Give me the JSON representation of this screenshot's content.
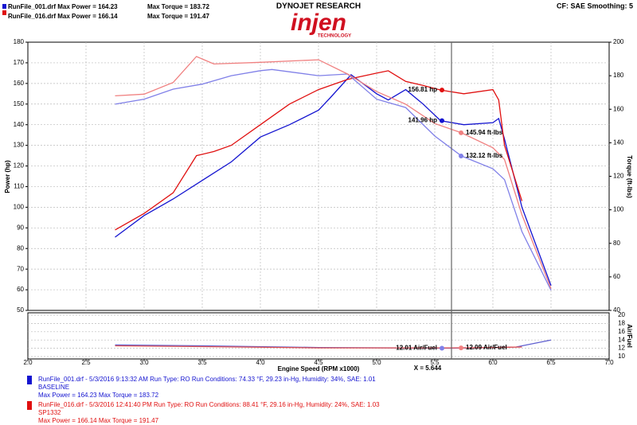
{
  "header": {
    "run1_power": "RunFile_001.drf Max Power = 164.23",
    "run1_torque": "Max Torque = 183.72",
    "run2_power": "RunFile_016.drf Max Power = 166.14",
    "run2_torque": "Max Torque = 191.47",
    "brand": "DYNOJET RESEARCH",
    "logo": "injen",
    "logo_sub": "TECHNOLOGY",
    "settings": "CF: SAE  Smoothing: 5"
  },
  "chart_data": {
    "type": "line",
    "xlabel": "Engine Speed (RPM x1000)",
    "ylabel": "Power (hp)",
    "y2label": "Torque (ft-lbs)",
    "afrlabel": "Air/Fuel",
    "xlim": [
      2,
      7
    ],
    "xticks": [
      {
        "value": 2,
        "label": "2.0"
      },
      2.5,
      {
        "value": 3,
        "label": "3.0"
      },
      3.5,
      {
        "value": 4,
        "label": "4.0"
      },
      4.5,
      {
        "value": 5,
        "label": "5.0"
      },
      5.5,
      {
        "value": 6,
        "label": "6.0"
      },
      6.5,
      {
        "value": 7,
        "label": "7.0"
      }
    ],
    "ylim": [
      50,
      180
    ],
    "yticks": [
      50,
      60,
      70,
      80,
      90,
      100,
      110,
      120,
      130,
      140,
      150,
      160,
      170,
      180
    ],
    "y2lim": [
      40,
      200
    ],
    "y2ticks": [
      40,
      60,
      80,
      100,
      120,
      140,
      160,
      180,
      200
    ],
    "afrlim": [
      10,
      20
    ],
    "afrticks": [
      10,
      12,
      14,
      16,
      18,
      20
    ],
    "grid": true,
    "series": [
      {
        "color": "#1414d0",
        "axis": "y",
        "x": [
          2.75,
          3.0,
          3.25,
          3.5,
          3.75,
          4.0,
          4.25,
          4.5,
          4.6,
          4.78,
          5.0,
          5.1,
          5.25,
          5.4,
          5.55,
          5.75,
          6.0,
          6.05,
          6.1,
          6.25,
          6.5
        ],
        "values": [
          85.5,
          96,
          104,
          113,
          122,
          134,
          140,
          147,
          153,
          164.23,
          155,
          152,
          157,
          150,
          141.96,
          140,
          141,
          143,
          133,
          100,
          62
        ]
      },
      {
        "color": "#e01010",
        "axis": "y",
        "x": [
          2.75,
          3.0,
          3.25,
          3.45,
          3.6,
          3.75,
          4.0,
          4.25,
          4.5,
          4.75,
          5.0,
          5.1,
          5.25,
          5.4,
          5.55,
          5.75,
          6.0,
          6.05,
          6.1,
          6.25
        ],
        "values": [
          89,
          97,
          107,
          125,
          127,
          130,
          140,
          150,
          157,
          162,
          165,
          166.14,
          161,
          159,
          156.81,
          155,
          157,
          152,
          130,
          103
        ]
      },
      {
        "color": "#8080e8",
        "axis": "y2",
        "x": [
          2.75,
          3.0,
          3.25,
          3.5,
          3.75,
          4.0,
          4.1,
          4.5,
          4.75,
          5.0,
          5.25,
          5.5,
          5.73,
          6.0,
          6.1,
          6.25,
          6.5
        ],
        "values": [
          163,
          166,
          172,
          175,
          180,
          183,
          183.72,
          180,
          181,
          166,
          161,
          144,
          132.12,
          124.5,
          118,
          87,
          52
        ]
      },
      {
        "color": "#f08080",
        "axis": "y2",
        "x": [
          2.75,
          3.0,
          3.25,
          3.45,
          3.6,
          4.0,
          4.5,
          4.75,
          5.0,
          5.25,
          5.5,
          5.73,
          6.0,
          6.1,
          6.25,
          6.5
        ],
        "values": [
          168,
          169,
          176,
          191.47,
          187,
          188,
          189.5,
          181,
          170.5,
          163,
          151.5,
          145.94,
          137,
          130,
          97,
          53
        ]
      },
      {
        "color": "#6060d0",
        "axis": "afr",
        "x": [
          2.75,
          3.5,
          4.5,
          5.644,
          6.2,
          6.5
        ],
        "values": [
          12.8,
          12.6,
          12.2,
          12.01,
          12.3,
          14
        ]
      },
      {
        "color": "#e05050",
        "axis": "afr",
        "x": [
          2.75,
          3.5,
          4.5,
          5.644,
          6.0,
          6.25
        ],
        "values": [
          12.6,
          12.4,
          12.1,
          12.09,
          12.2,
          12.3
        ]
      }
    ],
    "cursor": {
      "x": 5.644,
      "label": "X = 5.644",
      "markers": [
        {
          "axis": "y",
          "value": 156.81,
          "label": "156.81 hp",
          "color": "#e01010",
          "side": "left"
        },
        {
          "axis": "y",
          "value": 141.96,
          "label": "141.96 hp",
          "color": "#1414d0",
          "side": "left"
        },
        {
          "axis": "y2",
          "value": 145.94,
          "label": "145.94 ft-lbs",
          "color": "#f08080",
          "side": "right"
        },
        {
          "axis": "y2",
          "value": 132.12,
          "label": "132.12 ft-lbs",
          "color": "#8080e8",
          "side": "right"
        },
        {
          "axis": "afr",
          "value": 12.01,
          "label": "12.01 Air/Fuel",
          "color": "#8080e8",
          "side": "left"
        },
        {
          "axis": "afr",
          "value": 12.09,
          "label": "12.09 Air/Fuel",
          "color": "#f08080",
          "side": "right"
        }
      ]
    }
  },
  "footer": {
    "run1": [
      "RunFile_001.drf - 5/3/2016 9:13:32 AM  Run Type: RO  Run Conditions: 74.33 °F, 29.23 in-Hg,  Humidity:  34%, SAE: 1.01",
      "BASELINE",
      "Max Power = 164.23  Max Torque = 183.72"
    ],
    "run2": [
      "RunFile_016.drf - 5/3/2016 12:41:40 PM  Run Type: RO  Run Conditions: 88.41 °F, 29.16 in-Hg,  Humidity:  24%, SAE: 1.03",
      "SP1332",
      "Max Power = 166.14  Max Torque = 191.47"
    ]
  }
}
